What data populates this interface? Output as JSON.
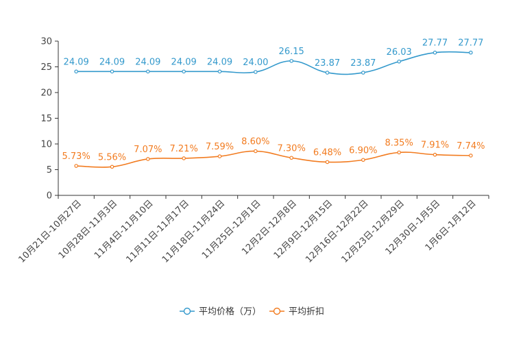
{
  "chart_data": {
    "type": "line",
    "title": "",
    "xlabel": "",
    "ylabel": "",
    "ylim": [
      0,
      30
    ],
    "yticks": [
      0,
      5,
      10,
      15,
      20,
      25,
      30
    ],
    "grid": false,
    "legend_position": "bottom",
    "categories": [
      "10月21日-10月27日",
      "10月28日-11月3日",
      "11月4日-11月10日",
      "11月11日-11月17日",
      "11月18日-11月24日",
      "11月25日-12月1日",
      "12月2日-12月8日",
      "12月9日-12月15日",
      "12月16日-12月22日",
      "12月23日-12月29日",
      "12月30日-1月5日",
      "1月6日-1月12日"
    ],
    "series": [
      {
        "name": "平均价格（万）",
        "color": "#3399cc",
        "values": [
          24.09,
          24.09,
          24.09,
          24.09,
          24.09,
          24.0,
          26.15,
          23.87,
          23.87,
          26.03,
          27.77,
          27.77
        ],
        "labels": [
          "24.09",
          "24.09",
          "24.09",
          "24.09",
          "24.09",
          "24.00",
          "26.15",
          "23.87",
          "23.87",
          "26.03",
          "27.77",
          "27.77"
        ]
      },
      {
        "name": "平均折扣",
        "color": "#f27b1f",
        "values": [
          5.73,
          5.56,
          7.07,
          7.21,
          7.59,
          8.6,
          7.3,
          6.48,
          6.9,
          8.35,
          7.91,
          7.74
        ],
        "labels": [
          "5.73%",
          "5.56%",
          "7.07%",
          "7.21%",
          "7.59%",
          "8.60%",
          "7.30%",
          "6.48%",
          "6.90%",
          "8.35%",
          "7.91%",
          "7.74%"
        ]
      }
    ]
  }
}
